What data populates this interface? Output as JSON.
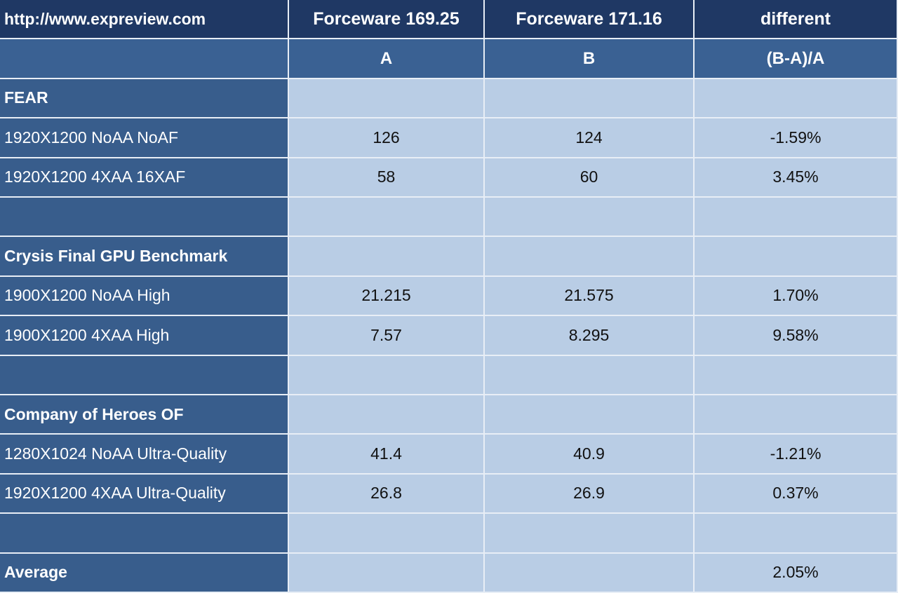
{
  "table": {
    "header": [
      [
        "http://www.expreview.com",
        "Forceware 169.25",
        "Forceware 171.16",
        "different"
      ],
      [
        null,
        "A",
        "B",
        "(B-A)/A"
      ]
    ],
    "rows": [
      [
        "FEAR",
        null,
        null,
        null
      ],
      [
        "1920X1200 NoAA NoAF",
        "126",
        "124",
        "-1.59%"
      ],
      [
        "1920X1200 4XAA 16XAF",
        "58",
        "60",
        "3.45%"
      ],
      [
        null,
        null,
        null,
        null
      ],
      [
        "Crysis Final GPU Benchmark",
        null,
        null,
        null
      ],
      [
        "1900X1200 NoAA High",
        "21.215",
        "21.575",
        "1.70%"
      ],
      [
        "1900X1200 4XAA High",
        "7.57",
        "8.295",
        "9.58%"
      ],
      [
        null,
        null,
        null,
        null
      ],
      [
        "Company of Heroes OF",
        null,
        null,
        null
      ],
      [
        "1280X1024 NoAA Ultra-Quality",
        "41.4",
        "40.9",
        "-1.21%"
      ],
      [
        "1920X1200 4XAA Ultra-Quality",
        "26.8",
        "26.9",
        "0.37%"
      ],
      [
        null,
        null,
        null,
        null
      ],
      [
        "Average",
        null,
        null,
        "2.05%"
      ]
    ]
  }
}
